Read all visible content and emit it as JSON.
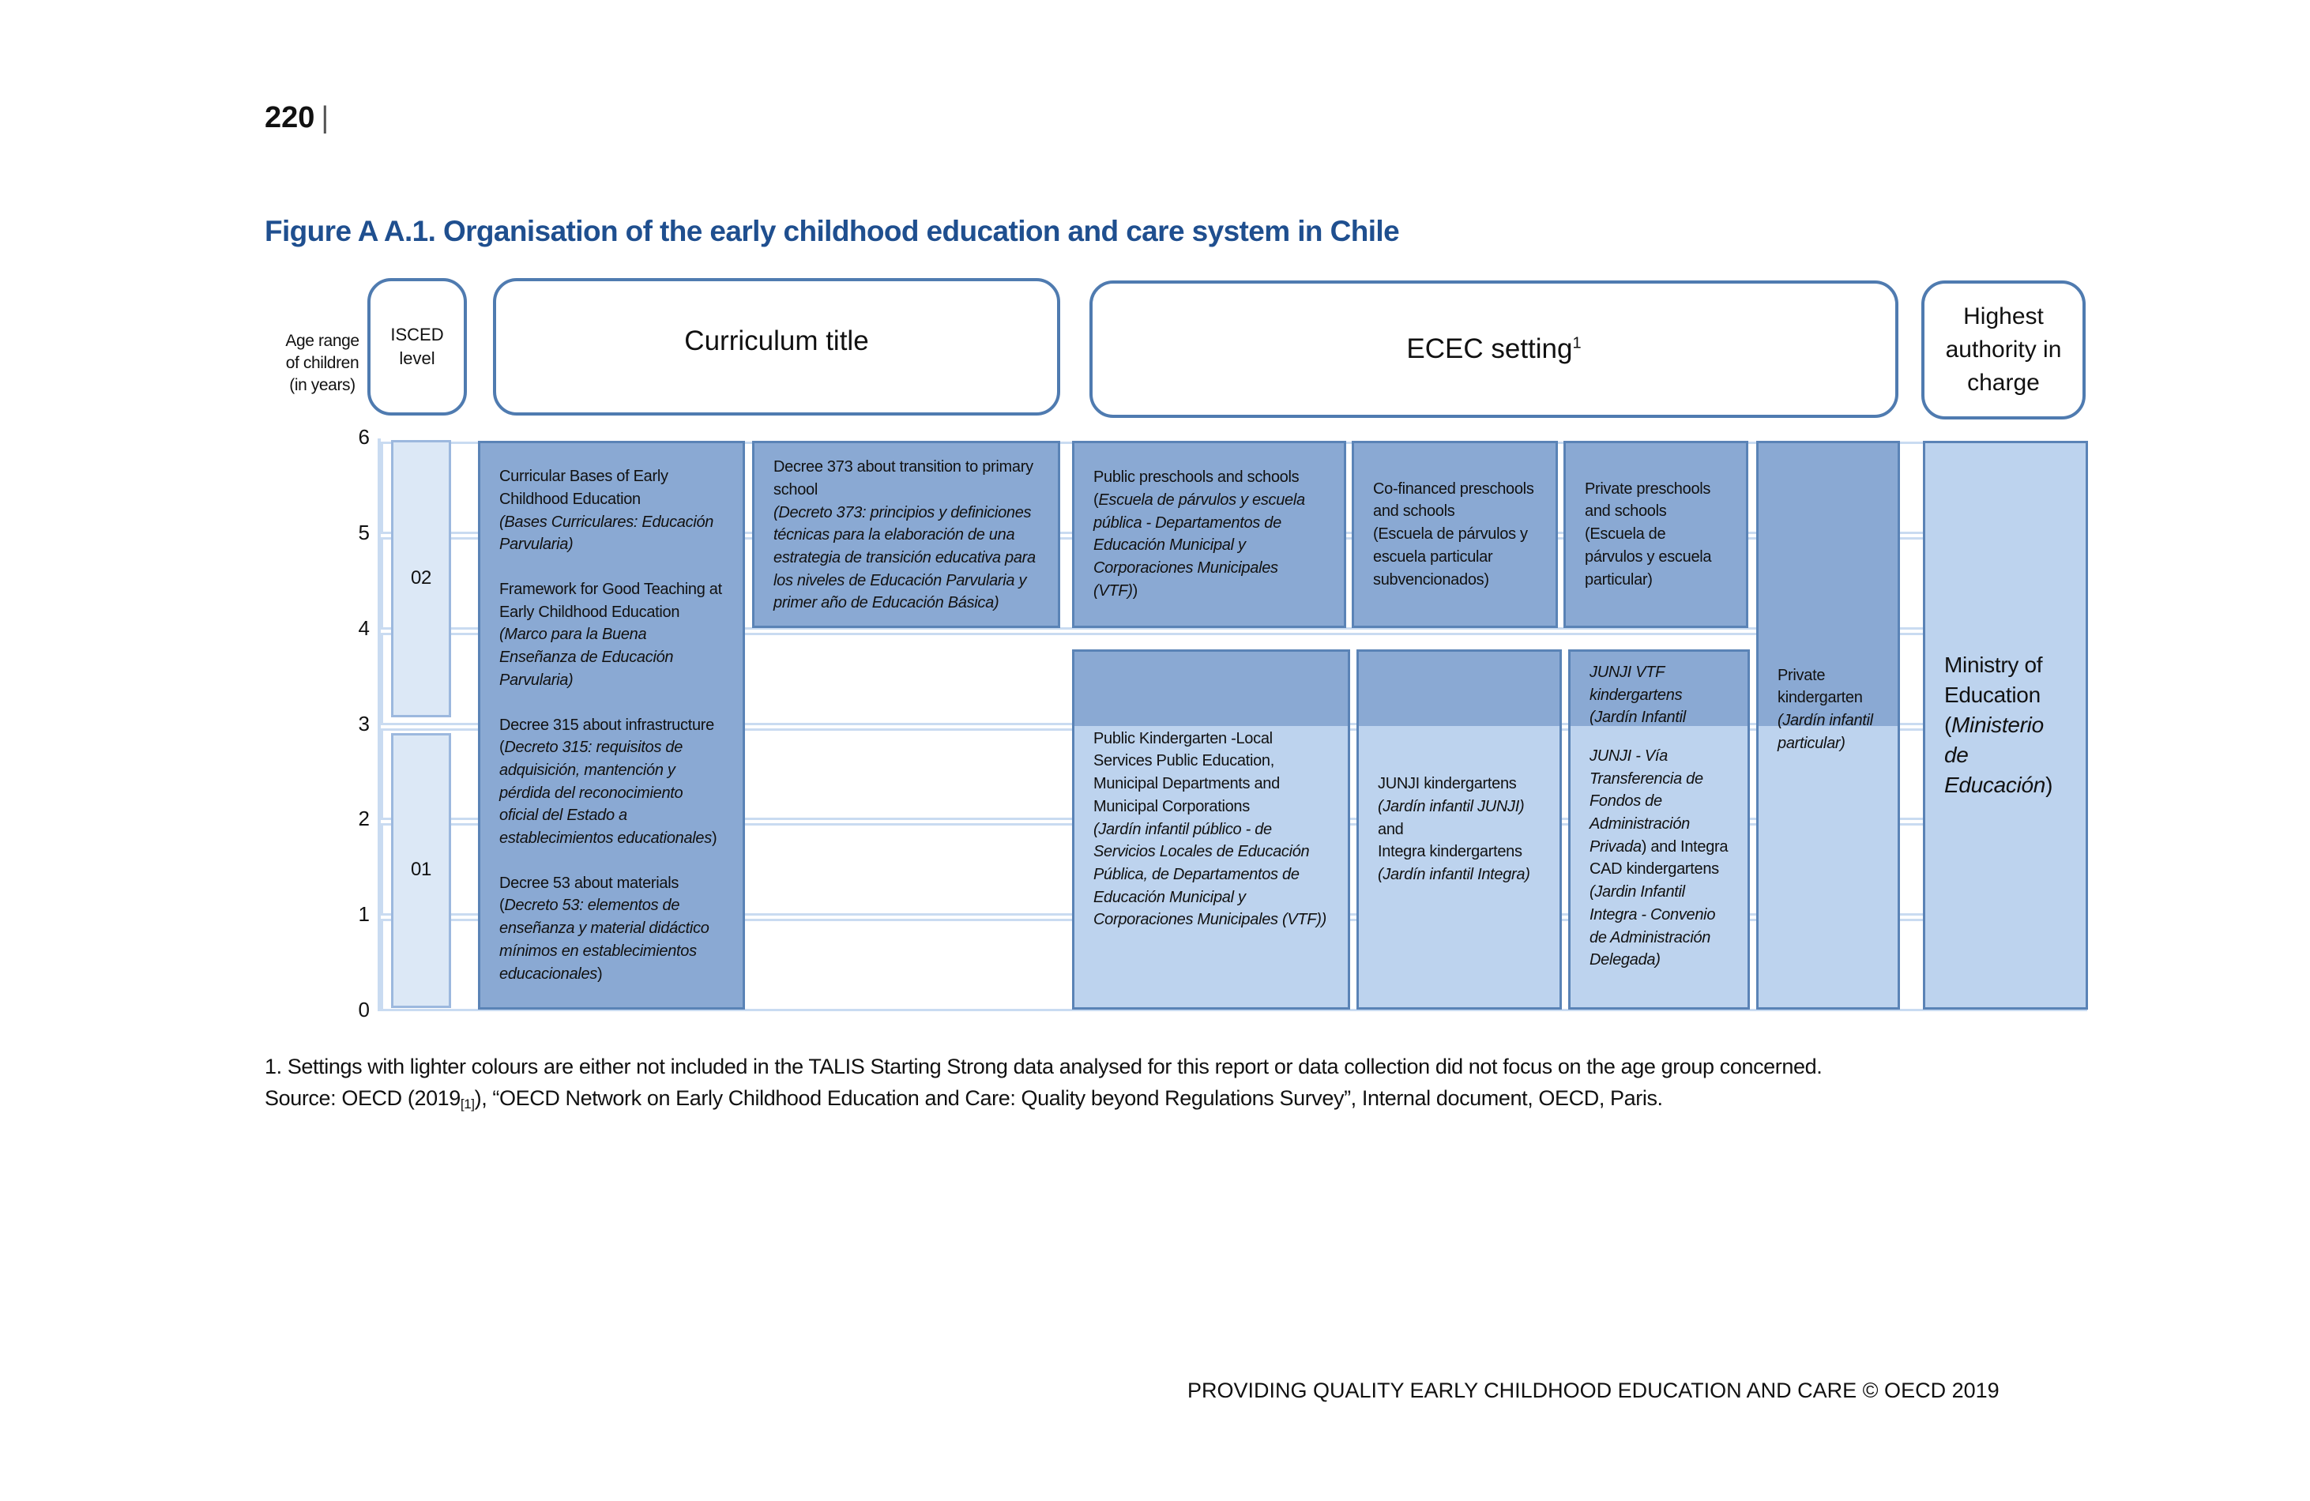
{
  "page": {
    "number": "220",
    "separator": "|"
  },
  "figure": {
    "title": "Figure A A.1. Organisation of the early childhood education and care system in Chile"
  },
  "colors": {
    "title": "#1f4f8f",
    "included_setting": "#8aa9d3",
    "lighter_setting": "#bdd3ee",
    "isced": "#dce8f6",
    "border": "#4f7bb0"
  },
  "headers": {
    "age": "Age range of children (in years)",
    "isced": "ISCED level",
    "curriculum": "Curriculum title",
    "ecec": "ECEC setting",
    "ecec_sup": "1",
    "authority": "Highest authority in charge"
  },
  "axis": {
    "ticks": [
      "0",
      "1",
      "2",
      "3",
      "4",
      "5",
      "6"
    ]
  },
  "isced_levels": [
    {
      "label": "02",
      "age_from": 3,
      "age_to": 6
    },
    {
      "label": "01",
      "age_from": 0,
      "age_to": 3
    }
  ],
  "boxes": {
    "curriculum_main": {
      "age_from": 0,
      "age_to": 6,
      "shade": "dark",
      "paras": [
        [
          [
            {
              "t": "Curricular Bases of Early Childhood Education"
            }
          ],
          [
            {
              "t": "(Bases Curriculares: Educación Parvularia)",
              "i": true
            }
          ]
        ],
        [
          [
            {
              "t": "Framework for Good Teaching at Early Childhood Education"
            }
          ],
          [
            {
              "t": "(Marco para la Buena Enseñanza de Educación Parvularia)",
              "i": true
            }
          ]
        ],
        [
          [
            {
              "t": "Decree 315 about infrastructure"
            }
          ],
          [
            {
              "t": "("
            },
            {
              "t": "Decreto 315: requisitos de adquisición, mantención y pérdida del reconocimiento oficial del Estado a establecimientos educationales",
              "i": true
            },
            {
              "t": ")"
            }
          ]
        ],
        [
          [
            {
              "t": "Decree 53 about materials"
            }
          ],
          [
            {
              "t": "("
            },
            {
              "t": "Decreto 53: elementos de enseñanza y material didáctico mínimos en establecimientos educacionales",
              "i": true
            },
            {
              "t": ")"
            }
          ]
        ]
      ]
    },
    "curriculum_transition": {
      "age_from": 4,
      "age_to": 6,
      "shade": "dark",
      "paras": [
        [
          [
            {
              "t": "Decree 373 about transition to primary school"
            }
          ],
          [
            {
              "t": "(Decreto 373: principios y definiciones técnicas para la elaboración de una estrategia de transición educativa para los niveles de Educación Parvularia y primer año de Educación Básica)",
              "i": true
            }
          ]
        ]
      ]
    },
    "public_preschools": {
      "age_from": 4,
      "age_to": 6,
      "shade": "dark",
      "paras": [
        [
          [
            {
              "t": "Public preschools and schools"
            }
          ],
          [
            {
              "t": "("
            },
            {
              "t": "Escuela de párvulos y escuela pública - Departamentos de Educación Municipal y Corporaciones Municipales (VTF)",
              "i": true
            },
            {
              "t": ")"
            }
          ]
        ]
      ]
    },
    "cofinanced_preschools": {
      "age_from": 4,
      "age_to": 6,
      "shade": "dark",
      "paras": [
        [
          [
            {
              "t": "Co-financed preschools and schools"
            }
          ],
          [
            {
              "t": "(Escuela de párvulos y escuela particular subvencionados)"
            }
          ]
        ]
      ]
    },
    "private_preschools": {
      "age_from": 4,
      "age_to": 6,
      "shade": "dark",
      "paras": [
        [
          [
            {
              "t": "Private preschools and schools"
            }
          ],
          [
            {
              "t": "(Escuela de párvulos y escuela particular)"
            }
          ]
        ]
      ]
    },
    "public_kindergarten": {
      "age_from": 0,
      "age_to": 4,
      "shade": "light",
      "paras": [
        [
          [
            {
              "t": "Public Kindergarten -Local Services Public Education, Municipal Departments and Municipal Corporations"
            }
          ],
          [
            {
              "t": "(Jardín infantil público - de Servicios Locales de Educación Pública, de Departamentos de Educación Municipal y Corporaciones Municipales (VTF))",
              "i": true
            }
          ]
        ]
      ]
    },
    "junji_integra": {
      "age_from": 0,
      "age_to": 4,
      "shade": "light",
      "paras": [
        [
          [
            {
              "t": "JUNJI kindergartens"
            }
          ],
          [
            {
              "t": "(Jardín infantil JUNJI)",
              "i": true
            }
          ],
          [
            {
              "t": "and"
            }
          ],
          [
            {
              "t": "Integra kindergartens"
            }
          ],
          [
            {
              "t": "(Jardín infantil Integra)",
              "i": true
            }
          ]
        ]
      ]
    },
    "junji_vtf": {
      "age_from": 0,
      "age_to": 4,
      "shade": "light",
      "paras": [
        [
          [
            {
              "t": "JUNJI VTF kindergartens (Jardín Infantil",
              "i": true
            }
          ]
        ],
        [
          [
            {
              "t": "JUNJI - Vía Transferencia de Fondos de Administración Privada",
              "i": true
            },
            {
              "t": ") and Integra CAD kindergartens"
            }
          ],
          [
            {
              "t": "(Jardin Infantil Integra - Convenio de Administración Delegada)",
              "i": true
            }
          ]
        ]
      ]
    },
    "private_kindergarten": {
      "age_from": 0,
      "age_to": 6,
      "shade": "light",
      "paras": [
        [
          [
            {
              "t": "Private kindergarten"
            }
          ],
          [
            {
              "t": "(Jardín infantil particular)",
              "i": true
            }
          ]
        ]
      ]
    },
    "ministry": {
      "age_from": 0,
      "age_to": 6,
      "shade": "light",
      "paras": [
        [
          [
            {
              "t": "Ministry of Education"
            }
          ],
          [
            {
              "t": "("
            },
            {
              "t": "Ministerio de Educación",
              "i": true
            },
            {
              "t": ")"
            }
          ]
        ]
      ]
    }
  },
  "notes": {
    "footnote": "1. Settings with lighter colours are either not included in the TALIS Starting Strong data analysed for this report or data collection did not focus on the age group concerned.",
    "source_prefix": "Source: OECD (2019",
    "source_ref": "[1]",
    "source_suffix": "), “OECD Network on Early Childhood Education and Care: Quality beyond Regulations Survey”, Internal document, OECD, Paris."
  },
  "footer": "PROVIDING QUALITY EARLY CHILDHOOD EDUCATION AND CARE © OECD 2019"
}
